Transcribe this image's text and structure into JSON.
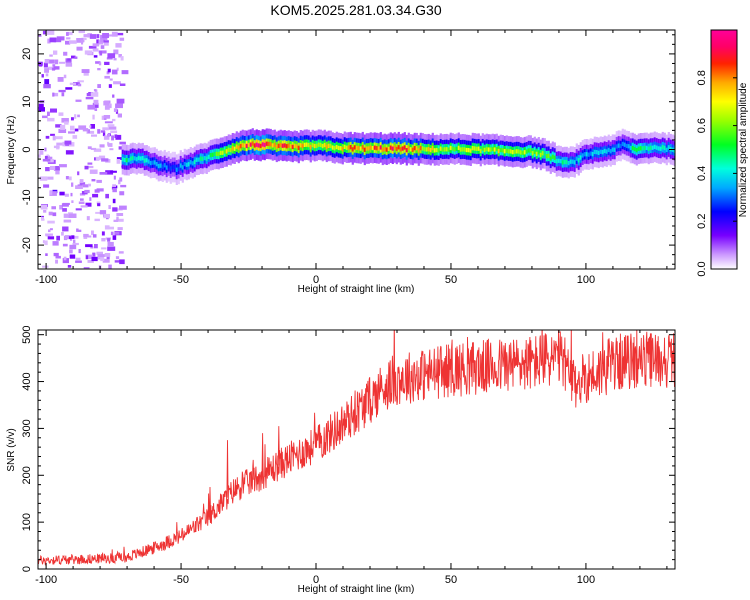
{
  "title": "KOM5.2025.281.03.34.G30",
  "chart_data": [
    {
      "type": "heatmap",
      "name": "spectrogram",
      "xlabel": "Height of straight line (km)",
      "ylabel": "Frequency (Hz)",
      "xlim": [
        -103,
        133
      ],
      "ylim": [
        -25,
        25
      ],
      "xticks": [
        -100,
        -50,
        0,
        50,
        100
      ],
      "yticks": [
        -20,
        -10,
        0,
        10,
        20
      ],
      "colorbar": {
        "label": "Normalized spectral amplitude",
        "range": [
          0,
          1
        ],
        "ticks": [
          0.0,
          0.2,
          0.4,
          0.6,
          0.8
        ]
      },
      "ridge": {
        "x": [
          -72,
          -65,
          -60,
          -55,
          -52,
          -48,
          -45,
          -40,
          -35,
          -30,
          -25,
          -20,
          -15,
          -10,
          -5,
          0,
          10,
          20,
          30,
          40,
          50,
          60,
          70,
          80,
          85,
          90,
          93,
          97,
          100,
          105,
          110,
          113,
          118,
          125,
          133
        ],
        "y": [
          -2,
          -2,
          -3,
          -3.8,
          -4,
          -3,
          -2.5,
          -1.5,
          -0.5,
          0.5,
          1,
          1,
          0.7,
          0.5,
          0.7,
          0.8,
          0.3,
          0.2,
          0.2,
          0,
          0.1,
          0,
          -0.3,
          -0.5,
          -1.2,
          -2.5,
          -3,
          -2,
          -1,
          -0.5,
          0,
          1,
          0,
          0.5,
          0
        ],
        "amplitude": [
          0.45,
          0.4,
          0.35,
          0.3,
          0.3,
          0.35,
          0.4,
          0.45,
          0.6,
          0.7,
          0.85,
          0.9,
          0.85,
          0.8,
          0.75,
          0.7,
          0.75,
          0.8,
          0.85,
          0.7,
          0.6,
          0.65,
          0.65,
          0.6,
          0.55,
          0.45,
          0.4,
          0.4,
          0.35,
          0.35,
          0.35,
          0.3,
          0.5,
          0.4,
          0.45
        ]
      },
      "noise_region_x": [
        -103,
        -72
      ]
    },
    {
      "type": "line",
      "name": "snr",
      "xlabel": "Height of straight line (km)",
      "ylabel": "SNR (v/v)",
      "xlim": [
        -103,
        133
      ],
      "ylim": [
        0,
        510
      ],
      "xticks": [
        -100,
        -50,
        0,
        50,
        100
      ],
      "yticks": [
        0,
        100,
        200,
        300,
        400,
        500
      ],
      "series_color": "#ee3333",
      "trend": {
        "x": [
          -103,
          -80,
          -70,
          -60,
          -50,
          -45,
          -40,
          -35,
          -30,
          -20,
          -10,
          0,
          10,
          20,
          25,
          30,
          40,
          50,
          60,
          70,
          80,
          88,
          92,
          95,
          100,
          105,
          110,
          120,
          133
        ],
        "y": [
          18,
          22,
          25,
          45,
          70,
          90,
          110,
          140,
          170,
          200,
          235,
          265,
          310,
          360,
          390,
          405,
          415,
          425,
          430,
          435,
          440,
          450,
          445,
          390,
          410,
          420,
          440,
          445,
          448
        ]
      },
      "spikes": [
        {
          "x": -39.5,
          "y": 175
        },
        {
          "x": -33,
          "y": 275
        },
        {
          "x": -20,
          "y": 290
        },
        {
          "x": -14,
          "y": 305
        },
        {
          "x": 52,
          "y": 475
        },
        {
          "x": 106,
          "y": 505
        },
        {
          "x": 108,
          "y": 490
        }
      ]
    }
  ]
}
